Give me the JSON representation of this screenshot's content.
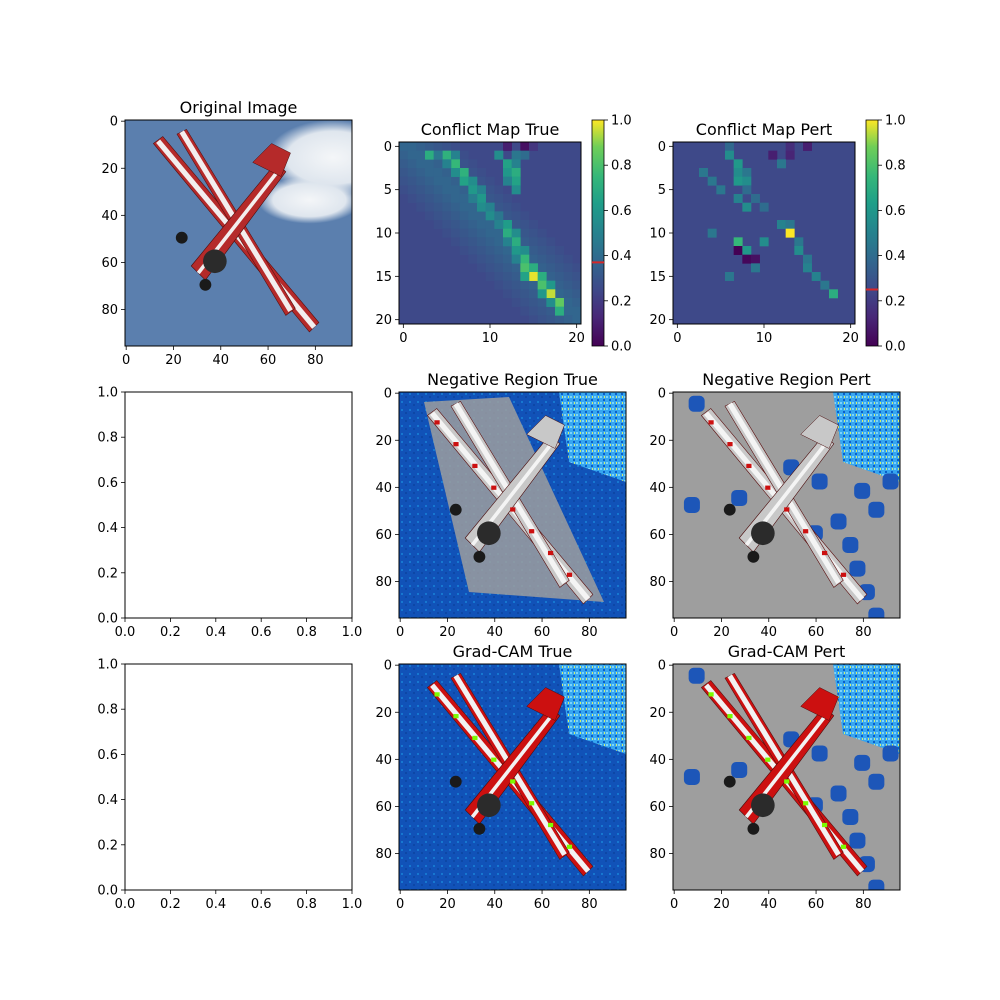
{
  "figure": {
    "background": "#ffffff"
  },
  "chart_data": [
    {
      "id": "original",
      "type": "image",
      "title": "Original Image",
      "content": "biplane-photo",
      "xlim": [
        -0.5,
        95.5
      ],
      "ylim": [
        95.5,
        -0.5
      ],
      "xticks": [
        0,
        20,
        40,
        60,
        80
      ],
      "yticks": [
        0,
        20,
        40,
        60,
        80
      ]
    },
    {
      "id": "conflict-true",
      "type": "heatmap",
      "title": "Conflict Map True",
      "grid_size": 21,
      "colormap": "viridis",
      "xlim": [
        -0.5,
        20.5
      ],
      "ylim": [
        20.5,
        -0.5
      ],
      "xticks": [
        0,
        10,
        20
      ],
      "yticks": [
        0,
        5,
        10,
        15,
        20
      ],
      "colorbar": {
        "range": [
          0,
          1
        ],
        "ticks": [
          "0.0",
          "0.2",
          "0.4",
          "0.6",
          "0.8",
          "1.0"
        ],
        "marker_value": 0.37,
        "marker_color": "#d62728"
      },
      "cells": [
        {
          "r": 0,
          "c": 12,
          "v": 0.1
        },
        {
          "r": 0,
          "c": 14,
          "v": 0.05
        },
        {
          "r": 0,
          "c": 15,
          "v": 0.18
        },
        {
          "r": 1,
          "c": 3,
          "v": 0.7
        },
        {
          "r": 1,
          "c": 5,
          "v": 0.72
        },
        {
          "r": 1,
          "c": 11,
          "v": 0.55
        },
        {
          "r": 1,
          "c": 14,
          "v": 0.4
        },
        {
          "r": 1,
          "c": 4,
          "v": 0.45
        },
        {
          "r": 1,
          "c": 6,
          "v": 0.5
        },
        {
          "r": 1,
          "c": 13,
          "v": 0.45
        },
        {
          "r": 2,
          "c": 6,
          "v": 0.75
        },
        {
          "r": 2,
          "c": 5,
          "v": 0.5
        },
        {
          "r": 2,
          "c": 12,
          "v": 0.65
        },
        {
          "r": 2,
          "c": 13,
          "v": 0.5
        },
        {
          "r": 3,
          "c": 7,
          "v": 0.72
        },
        {
          "r": 3,
          "c": 6,
          "v": 0.55
        },
        {
          "r": 3,
          "c": 12,
          "v": 0.6
        },
        {
          "r": 3,
          "c": 13,
          "v": 0.7
        },
        {
          "r": 4,
          "c": 7,
          "v": 0.65
        },
        {
          "r": 4,
          "c": 8,
          "v": 0.55
        },
        {
          "r": 4,
          "c": 13,
          "v": 0.65
        },
        {
          "r": 4,
          "c": 12,
          "v": 0.5
        },
        {
          "r": 5,
          "c": 8,
          "v": 0.6
        },
        {
          "r": 5,
          "c": 9,
          "v": 0.5
        },
        {
          "r": 5,
          "c": 13,
          "v": 0.55
        },
        {
          "r": 6,
          "c": 9,
          "v": 0.6
        },
        {
          "r": 6,
          "c": 8,
          "v": 0.48
        },
        {
          "r": 7,
          "c": 9,
          "v": 0.55
        },
        {
          "r": 7,
          "c": 10,
          "v": 0.5
        },
        {
          "r": 8,
          "c": 10,
          "v": 0.55
        },
        {
          "r": 8,
          "c": 11,
          "v": 0.45
        },
        {
          "r": 9,
          "c": 12,
          "v": 0.62
        },
        {
          "r": 9,
          "c": 11,
          "v": 0.5
        },
        {
          "r": 10,
          "c": 12,
          "v": 0.7
        },
        {
          "r": 10,
          "c": 13,
          "v": 0.55
        },
        {
          "r": 11,
          "c": 13,
          "v": 0.7
        },
        {
          "r": 11,
          "c": 12,
          "v": 0.5
        },
        {
          "r": 12,
          "c": 13,
          "v": 0.6
        },
        {
          "r": 12,
          "c": 14,
          "v": 0.55
        },
        {
          "r": 13,
          "c": 14,
          "v": 0.75
        },
        {
          "r": 13,
          "c": 13,
          "v": 0.5
        },
        {
          "r": 14,
          "c": 14,
          "v": 0.8
        },
        {
          "r": 14,
          "c": 15,
          "v": 0.7
        },
        {
          "r": 15,
          "c": 15,
          "v": 0.98
        },
        {
          "r": 15,
          "c": 14,
          "v": 0.65
        },
        {
          "r": 15,
          "c": 16,
          "v": 0.7
        },
        {
          "r": 16,
          "c": 16,
          "v": 0.8
        },
        {
          "r": 16,
          "c": 17,
          "v": 0.6
        },
        {
          "r": 17,
          "c": 17,
          "v": 0.95
        },
        {
          "r": 17,
          "c": 16,
          "v": 0.6
        },
        {
          "r": 18,
          "c": 18,
          "v": 0.85
        },
        {
          "r": 18,
          "c": 17,
          "v": 0.55
        },
        {
          "r": 19,
          "c": 18,
          "v": 0.7
        }
      ]
    },
    {
      "id": "conflict-pert",
      "type": "heatmap",
      "title": "Conflict Map Pert",
      "grid_size": 21,
      "colormap": "viridis",
      "xlim": [
        -0.5,
        20.5
      ],
      "ylim": [
        20.5,
        -0.5
      ],
      "xticks": [
        0,
        10,
        20
      ],
      "yticks": [
        0,
        5,
        10,
        15,
        20
      ],
      "colorbar": {
        "range": [
          0,
          1
        ],
        "ticks": [
          "0.0",
          "0.2",
          "0.4",
          "0.6",
          "0.8",
          "1.0"
        ],
        "marker_value": 0.25,
        "marker_color": "#d62728"
      },
      "cells": [
        {
          "r": 0,
          "c": 6,
          "v": 0.38
        },
        {
          "r": 0,
          "c": 13,
          "v": 0.15
        },
        {
          "r": 0,
          "c": 15,
          "v": 0.1
        },
        {
          "r": 1,
          "c": 6,
          "v": 0.55
        },
        {
          "r": 1,
          "c": 11,
          "v": 0.1
        },
        {
          "r": 1,
          "c": 13,
          "v": 0.12
        },
        {
          "r": 2,
          "c": 7,
          "v": 0.6
        },
        {
          "r": 2,
          "c": 12,
          "v": 0.45
        },
        {
          "r": 3,
          "c": 3,
          "v": 0.45
        },
        {
          "r": 3,
          "c": 7,
          "v": 0.55
        },
        {
          "r": 3,
          "c": 8,
          "v": 0.45
        },
        {
          "r": 4,
          "c": 4,
          "v": 0.45
        },
        {
          "r": 4,
          "c": 7,
          "v": 0.6
        },
        {
          "r": 4,
          "c": 8,
          "v": 0.55
        },
        {
          "r": 5,
          "c": 5,
          "v": 0.45
        },
        {
          "r": 5,
          "c": 8,
          "v": 0.4
        },
        {
          "r": 6,
          "c": 7,
          "v": 0.5
        },
        {
          "r": 6,
          "c": 9,
          "v": 0.4
        },
        {
          "r": 7,
          "c": 8,
          "v": 0.55
        },
        {
          "r": 7,
          "c": 10,
          "v": 0.4
        },
        {
          "r": 9,
          "c": 12,
          "v": 0.5
        },
        {
          "r": 9,
          "c": 13,
          "v": 0.45
        },
        {
          "r": 10,
          "c": 4,
          "v": 0.45
        },
        {
          "r": 10,
          "c": 13,
          "v": 1.0
        },
        {
          "r": 11,
          "c": 7,
          "v": 0.75
        },
        {
          "r": 11,
          "c": 10,
          "v": 0.55
        },
        {
          "r": 11,
          "c": 14,
          "v": 0.45
        },
        {
          "r": 12,
          "c": 7,
          "v": 0.0
        },
        {
          "r": 12,
          "c": 8,
          "v": 0.6
        },
        {
          "r": 12,
          "c": 14,
          "v": 0.55
        },
        {
          "r": 13,
          "c": 8,
          "v": 0.02
        },
        {
          "r": 13,
          "c": 9,
          "v": 0.05
        },
        {
          "r": 13,
          "c": 15,
          "v": 0.45
        },
        {
          "r": 14,
          "c": 9,
          "v": 0.45
        },
        {
          "r": 14,
          "c": 15,
          "v": 0.5
        },
        {
          "r": 15,
          "c": 6,
          "v": 0.45
        },
        {
          "r": 15,
          "c": 16,
          "v": 0.5
        },
        {
          "r": 16,
          "c": 17,
          "v": 0.45
        },
        {
          "r": 17,
          "c": 18,
          "v": 0.7
        }
      ]
    },
    {
      "id": "empty-1",
      "type": "scatter",
      "title": "",
      "xlim": [
        0,
        1
      ],
      "ylim": [
        0,
        1
      ],
      "xticks": [
        "0.0",
        "0.2",
        "0.4",
        "0.6",
        "0.8",
        "1.0"
      ],
      "yticks": [
        "0.0",
        "0.2",
        "0.4",
        "0.6",
        "0.8",
        "1.0"
      ]
    },
    {
      "id": "neg-true",
      "type": "image",
      "title": "Negative Region True",
      "content": "biplane-overlay-blue-background",
      "xlim": [
        -0.5,
        95.5
      ],
      "ylim": [
        95.5,
        -0.5
      ],
      "xticks": [
        0,
        20,
        40,
        60,
        80
      ],
      "yticks": [
        0,
        20,
        40,
        60,
        80
      ]
    },
    {
      "id": "neg-pert",
      "type": "image",
      "title": "Negative Region Pert",
      "content": "biplane-overlay-gray-background",
      "xlim": [
        -0.5,
        95.5
      ],
      "ylim": [
        95.5,
        -0.5
      ],
      "xticks": [
        0,
        20,
        40,
        60,
        80
      ],
      "yticks": [
        0,
        20,
        40,
        60,
        80
      ]
    },
    {
      "id": "empty-2",
      "type": "scatter",
      "title": "",
      "xlim": [
        0,
        1
      ],
      "ylim": [
        0,
        1
      ],
      "xticks": [
        "0.0",
        "0.2",
        "0.4",
        "0.6",
        "0.8",
        "1.0"
      ],
      "yticks": [
        "0.0",
        "0.2",
        "0.4",
        "0.6",
        "0.8",
        "1.0"
      ]
    },
    {
      "id": "gradcam-true",
      "type": "image",
      "title": "Grad-CAM True",
      "content": "biplane-overlay-red-blue",
      "xlim": [
        -0.5,
        95.5
      ],
      "ylim": [
        95.5,
        -0.5
      ],
      "xticks": [
        0,
        20,
        40,
        60,
        80
      ],
      "yticks": [
        0,
        20,
        40,
        60,
        80
      ]
    },
    {
      "id": "gradcam-pert",
      "type": "image",
      "title": "Grad-CAM Pert",
      "content": "biplane-overlay-red-gray",
      "xlim": [
        -0.5,
        95.5
      ],
      "ylim": [
        95.5,
        -0.5
      ],
      "xticks": [
        0,
        20,
        40,
        60,
        80
      ],
      "yticks": [
        0,
        20,
        40,
        60,
        80
      ]
    }
  ]
}
